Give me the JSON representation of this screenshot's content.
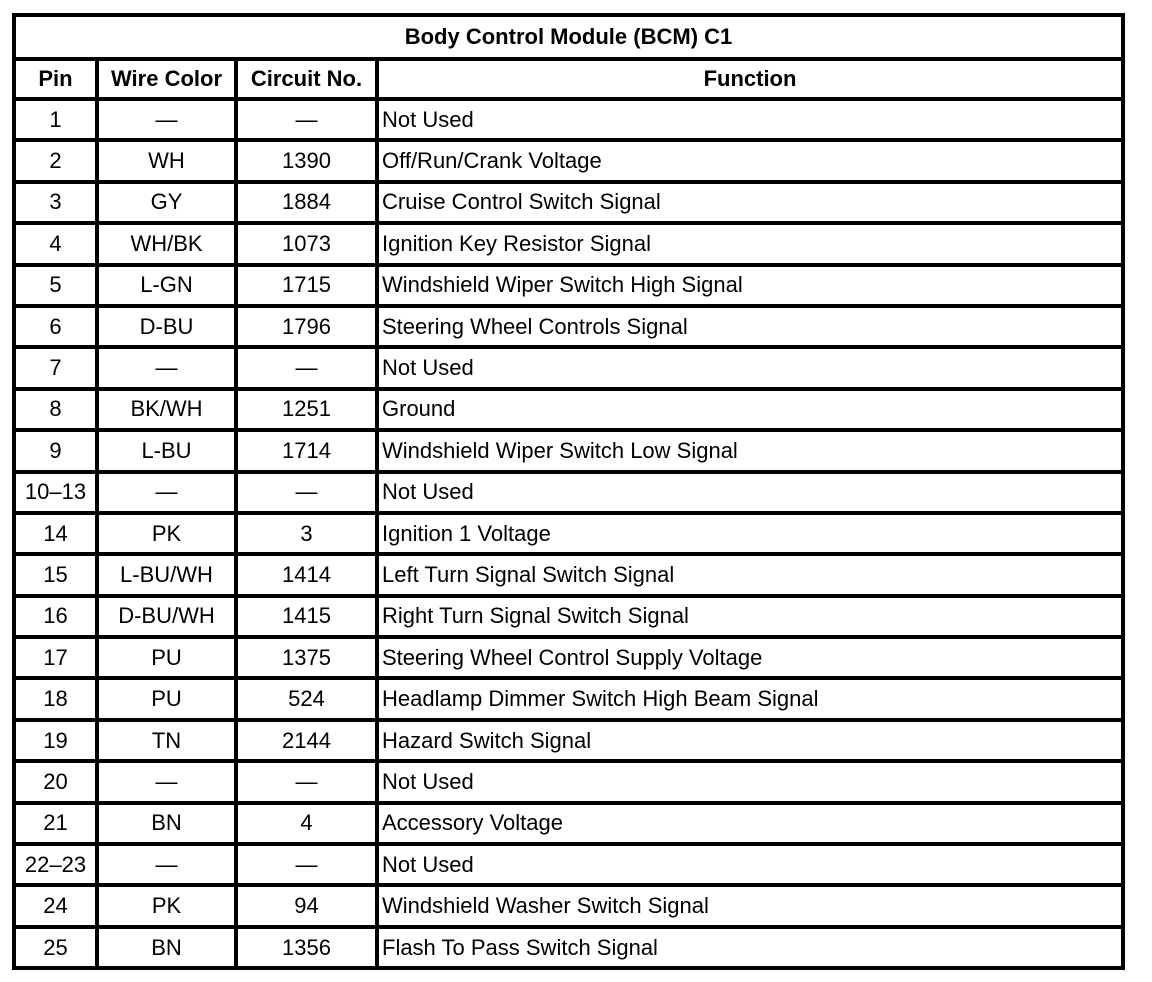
{
  "table": {
    "title": "Body Control Module (BCM) C1",
    "headers": [
      "Pin",
      "Wire Color",
      "Circuit No.",
      "Function"
    ],
    "rows": [
      [
        "1",
        "—",
        "—",
        "Not Used"
      ],
      [
        "2",
        "WH",
        "1390",
        "Off/Run/Crank Voltage"
      ],
      [
        "3",
        "GY",
        "1884",
        "Cruise Control Switch Signal"
      ],
      [
        "4",
        "WH/BK",
        "1073",
        "Ignition Key Resistor Signal"
      ],
      [
        "5",
        "L-GN",
        "1715",
        "Windshield Wiper Switch High Signal"
      ],
      [
        "6",
        "D-BU",
        "1796",
        "Steering Wheel Controls Signal"
      ],
      [
        "7",
        "—",
        "—",
        "Not Used"
      ],
      [
        "8",
        "BK/WH",
        "1251",
        "Ground"
      ],
      [
        "9",
        "L-BU",
        "1714",
        "Windshield Wiper Switch Low Signal"
      ],
      [
        "10–13",
        "—",
        "—",
        "Not Used"
      ],
      [
        "14",
        "PK",
        "3",
        "Ignition 1 Voltage"
      ],
      [
        "15",
        "L-BU/WH",
        "1414",
        "Left Turn Signal Switch Signal"
      ],
      [
        "16",
        "D-BU/WH",
        "1415",
        "Right Turn Signal Switch Signal"
      ],
      [
        "17",
        "PU",
        "1375",
        "Steering Wheel Control Supply Voltage"
      ],
      [
        "18",
        "PU",
        "524",
        "Headlamp Dimmer Switch High Beam Signal"
      ],
      [
        "19",
        "TN",
        "2144",
        "Hazard Switch Signal"
      ],
      [
        "20",
        "—",
        "—",
        "Not Used"
      ],
      [
        "21",
        "BN",
        "4",
        "Accessory Voltage"
      ],
      [
        "22–23",
        "—",
        "—",
        "Not Used"
      ],
      [
        "24",
        "PK",
        "94",
        "Windshield Washer Switch Signal"
      ],
      [
        "25",
        "BN",
        "1356",
        "Flash To Pass Switch Signal"
      ]
    ]
  }
}
